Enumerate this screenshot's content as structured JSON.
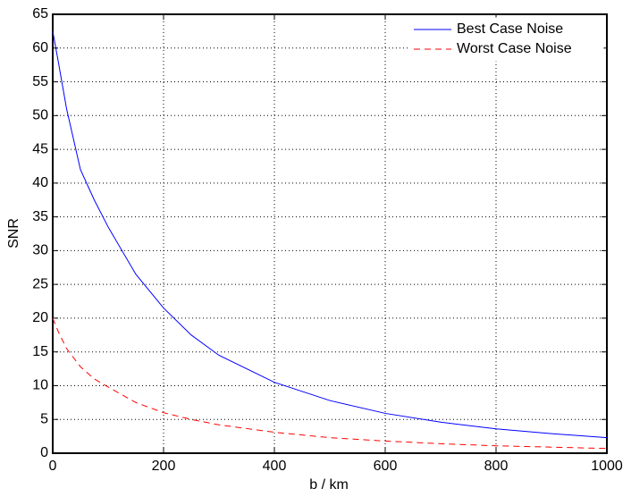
{
  "chart_data": {
    "type": "line",
    "x_label": "b / km",
    "y_label": "SNR",
    "x": [
      0,
      10,
      25,
      50,
      75,
      100,
      150,
      200,
      250,
      300,
      400,
      500,
      600,
      700,
      800,
      900,
      1000
    ],
    "series": [
      {
        "name": "Best Case Noise",
        "color": "#0000ff",
        "dash": "solid",
        "values": [
          62.5,
          58,
          51,
          42,
          37.5,
          33.5,
          26.5,
          21.5,
          17.5,
          14.5,
          10.5,
          7.8,
          5.9,
          4.6,
          3.6,
          2.9,
          2.3
        ]
      },
      {
        "name": "Worst Case Noise",
        "color": "#ff0000",
        "dash": "dashed",
        "values": [
          20,
          18,
          15.5,
          12.8,
          11,
          9.8,
          7.5,
          6,
          5,
          4.2,
          3.1,
          2.3,
          1.8,
          1.4,
          1.1,
          0.9,
          0.7
        ]
      }
    ],
    "xlim": [
      0,
      1000
    ],
    "xticks": [
      0,
      200,
      400,
      600,
      800,
      1000
    ],
    "ylim": [
      0,
      65
    ],
    "yticks": [
      0,
      5,
      10,
      15,
      20,
      25,
      30,
      35,
      40,
      45,
      50,
      55,
      60,
      65
    ],
    "grid": true,
    "legend": "upper right"
  }
}
